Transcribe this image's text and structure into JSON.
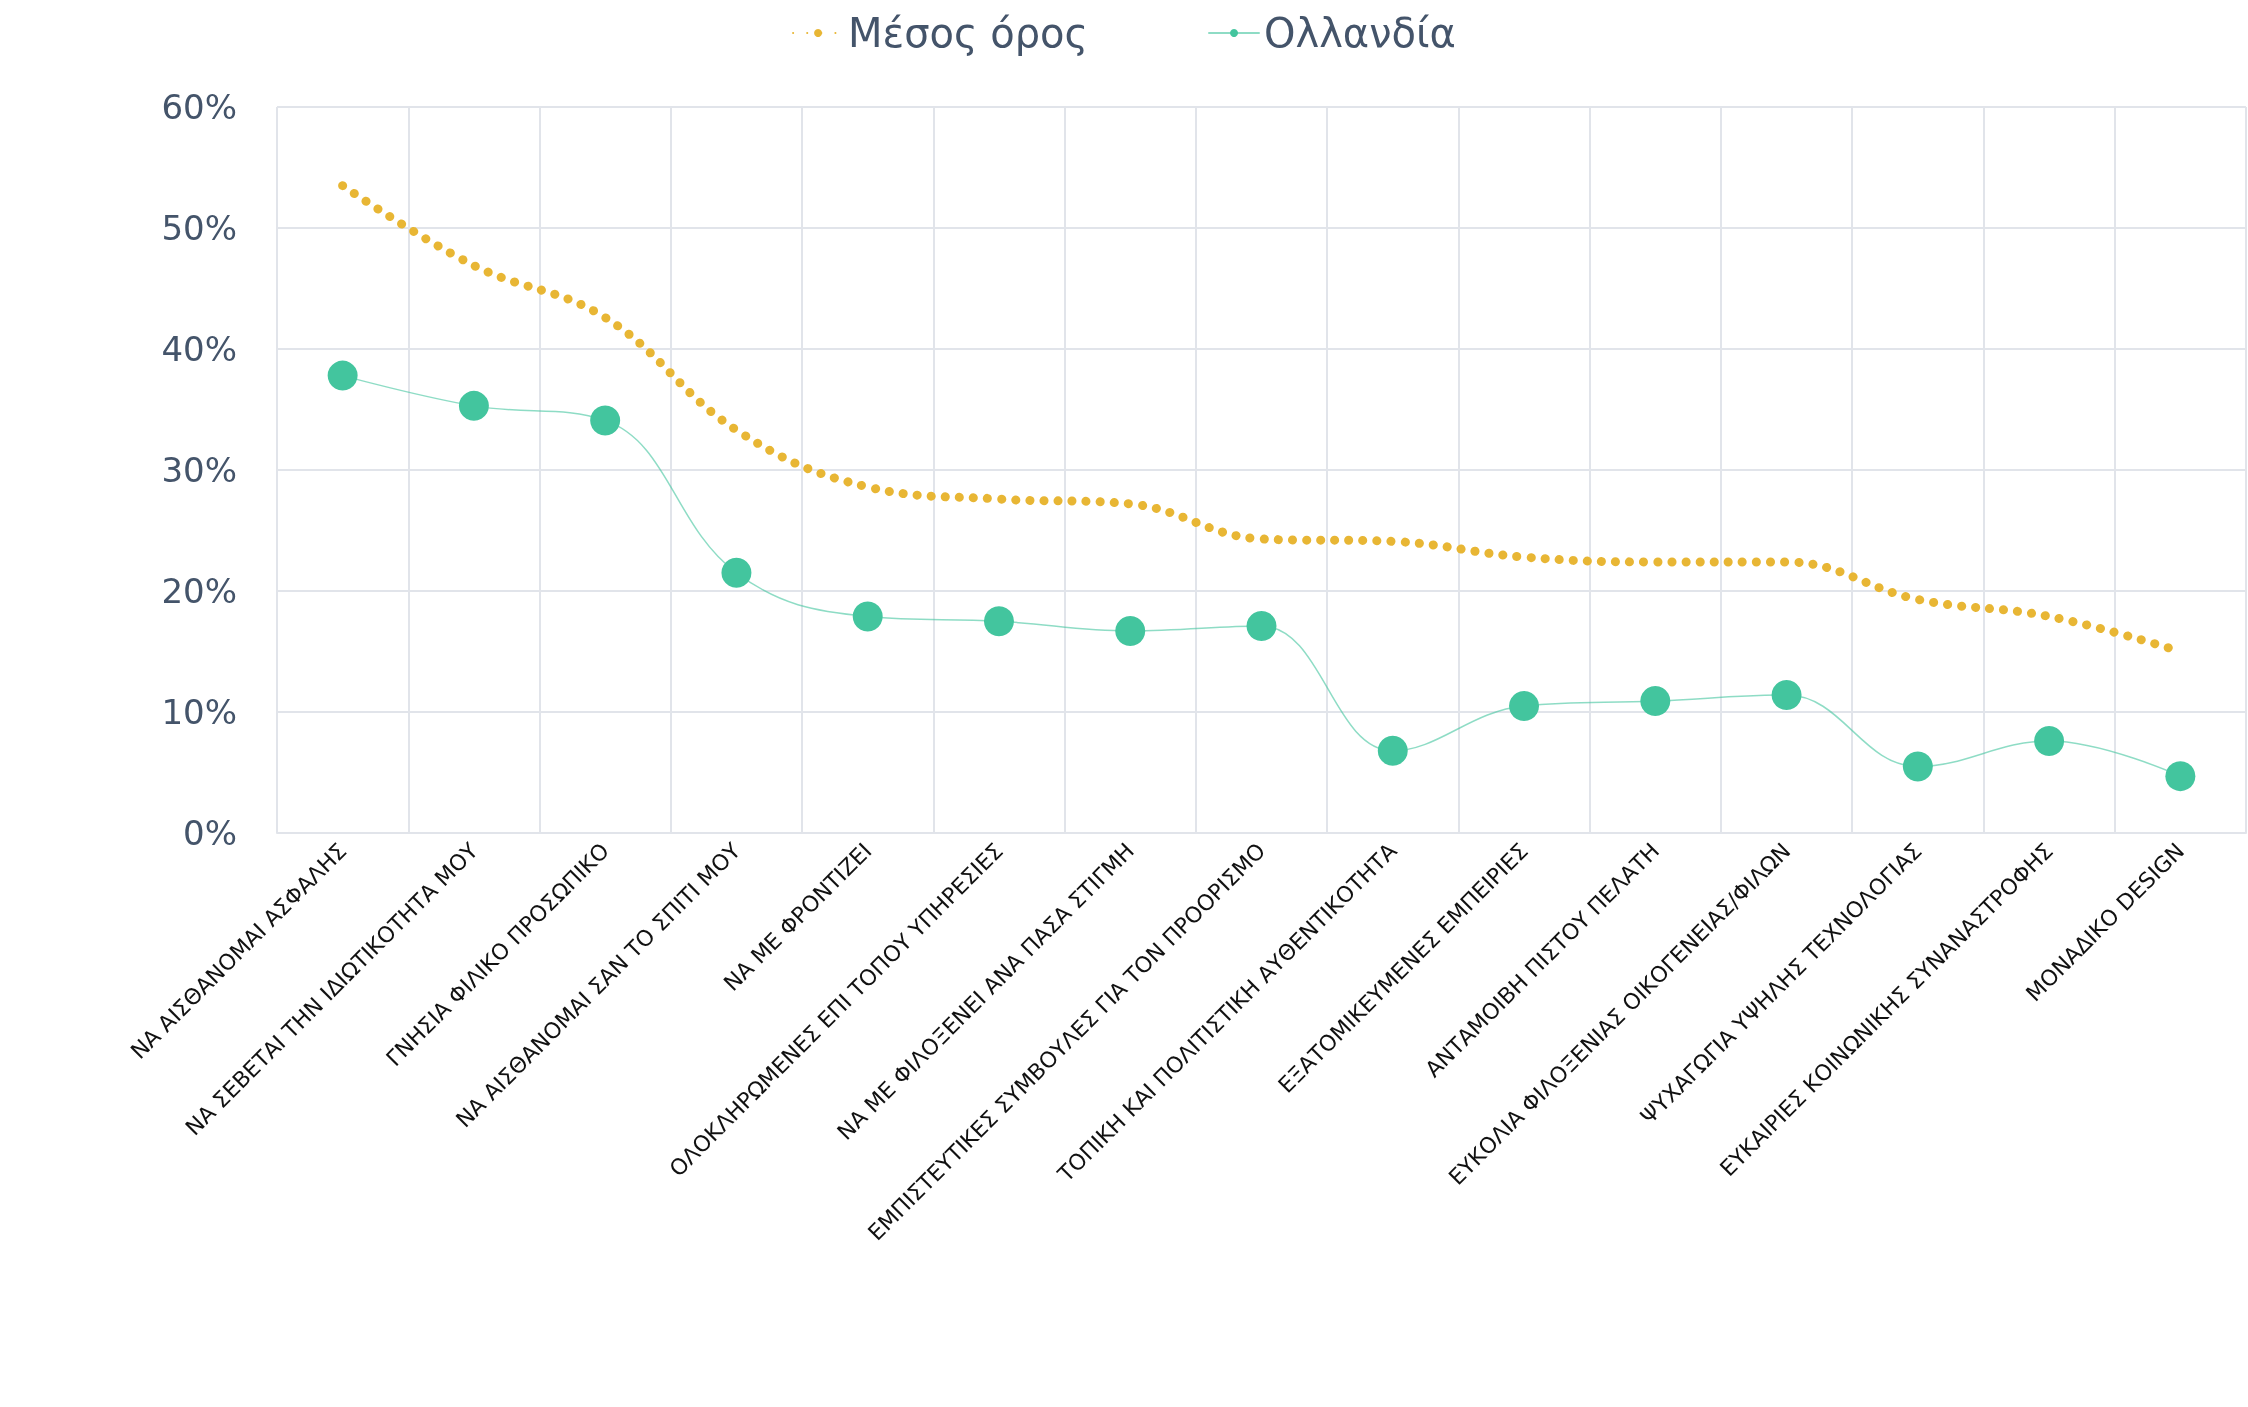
{
  "chart_data": {
    "type": "line",
    "categories": [
      "ΝΑ ΑΙΣΘΑΝΟΜΑΙ ΑΣΦΑΛΗΣ",
      "ΝΑ ΣΕΒΕΤΑΙ ΤΗΝ ΙΔΙΩΤΙΚΟΤΗΤΑ ΜΟΥ",
      "ΓΝΗΣΙΑ ΦΙΛΙΚΟ ΠΡΟΣΩΠΙΚΟ",
      "ΝΑ ΑΙΣΘΑΝΟΜΑΙ ΣΑΝ ΤΟ ΣΠΙΤΙ ΜΟΥ",
      "ΝΑ ΜΕ ΦΡΟΝΤΙΖΕΙ",
      "ΟΛΟΚΛΗΡΩΜΕΝΕΣ ΕΠΙ ΤΟΠΟΥ ΥΠΗΡΕΣΙΕΣ",
      "ΝΑ ΜΕ ΦΙΛΟΞΕΝΕΙ ΑΝΑ ΠΑΣΑ ΣΤΙΓΜΗ",
      "ΕΜΠΙΣΤΕΥΤΙΚΕΣ ΣΥΜΒΟΥΛΕΣ ΓΙΑ ΤΟΝ ΠΡΟΟΡΙΣΜΟ",
      "ΤΟΠΙΚΗ ΚΑΙ ΠΟΛΙΤΙΣΤΙΚΗ ΑΥΘΕΝΤΙΚΟΤΗΤΑ",
      "ΕΞΑΤΟΜΙΚΕΥΜΕΝΕΣ ΕΜΠΕΙΡΙΕΣ",
      "ΑΝΤΑΜΟΙΒΗ ΠΙΣΤΟΥ ΠΕΛΑΤΗ",
      "ΕΥΚΟΛΙΑ ΦΙΛΟΞΕΝΙΑΣ ΟΙΚΟΓΕΝΕΙΑΣ/ΦΙΛΩΝ",
      "ΨΥΧΑΓΩΓΙΑ ΥΨΗΛΗΣ ΤΕΧΝΟΛΟΓΙΑΣ",
      "ΕΥΚΑΙΡΙΕΣ ΚΟΙΝΩΝΙΚΗΣ ΣΥΝΑΝΑΣΤΡΟΦΗΣ",
      "ΜΟΝΑΔΙΚΟ DESIGN"
    ],
    "series": [
      {
        "name": "Μέσος όρος",
        "color": "#e8b634",
        "marker": "none",
        "line_style": "dotted",
        "values": [
          53.5,
          46.9,
          42.6,
          33.3,
          28.6,
          27.6,
          27.2,
          24.3,
          24.1,
          22.8,
          22.4,
          22.4,
          19.3,
          17.9,
          15.0
        ]
      },
      {
        "name": "Ολλανδία",
        "color": "#43c59e",
        "marker": "circle",
        "line_style": "solid",
        "values": [
          37.8,
          35.3,
          34.1,
          21.5,
          17.9,
          17.5,
          16.7,
          17.1,
          6.8,
          10.5,
          10.9,
          11.4,
          5.5,
          7.6,
          4.7
        ]
      }
    ],
    "ylim": [
      0,
      60
    ],
    "yticks": [
      {
        "value": 0,
        "label": "0%"
      },
      {
        "value": 10,
        "label": "10%"
      },
      {
        "value": 20,
        "label": "20%"
      },
      {
        "value": 30,
        "label": "30%"
      },
      {
        "value": 40,
        "label": "40%"
      },
      {
        "value": 50,
        "label": "50%"
      },
      {
        "value": 60,
        "label": "60%"
      }
    ],
    "grid": true,
    "legend": "top"
  }
}
